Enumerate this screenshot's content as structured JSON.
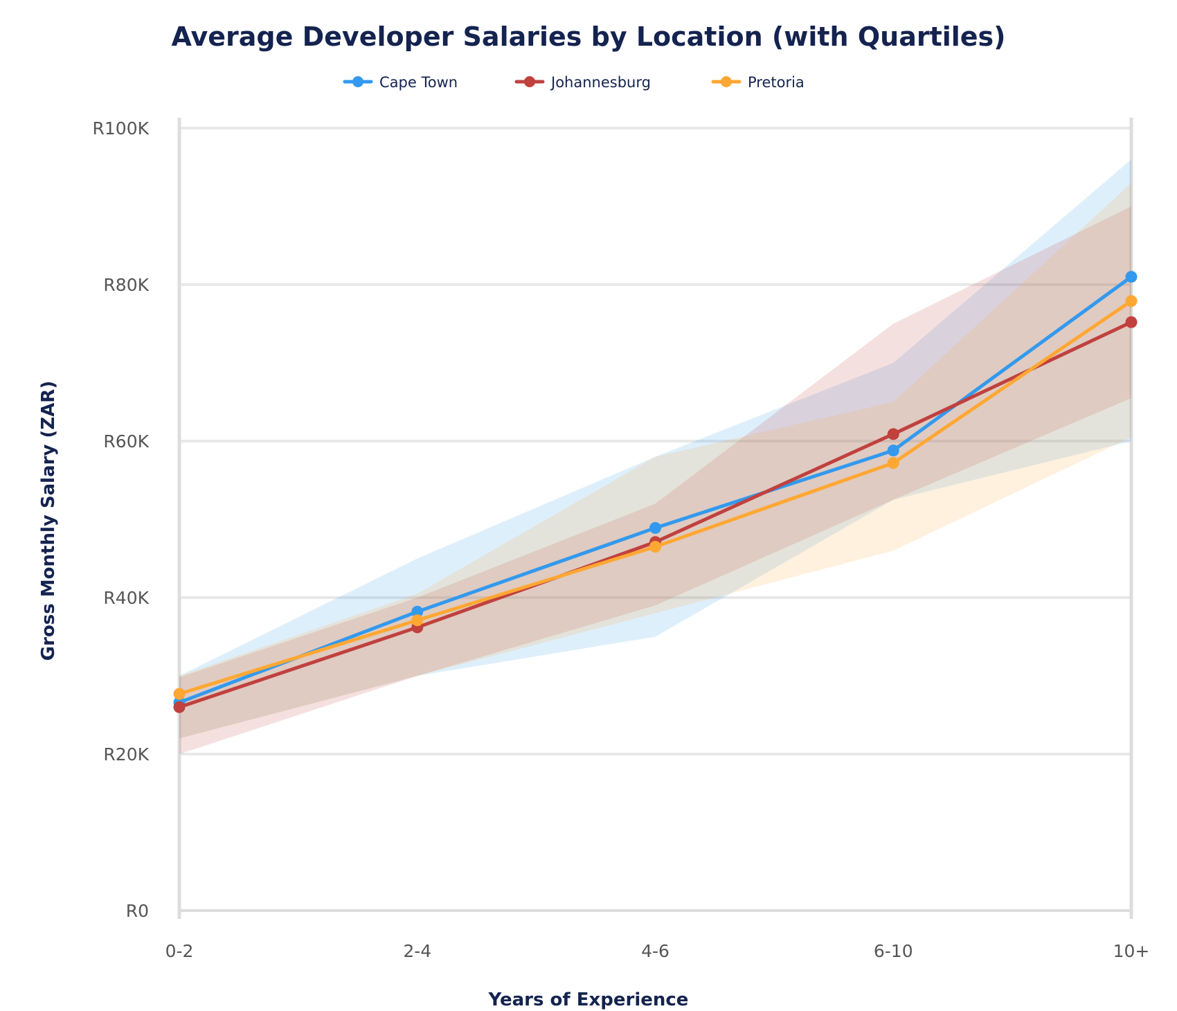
{
  "chart_data": {
    "type": "line",
    "title": "Average Developer Salaries by Location (with Quartiles)",
    "xlabel": "Years of Experience",
    "ylabel": "Gross Monthly Salary (ZAR)",
    "categories": [
      "0-2",
      "2-4",
      "4-6",
      "6-10",
      "10+"
    ],
    "ylim": [
      0,
      100000
    ],
    "yticks": [
      0,
      20000,
      40000,
      60000,
      80000,
      100000
    ],
    "ytick_labels": [
      "R0",
      "R20K",
      "R40K",
      "R60K",
      "R80K",
      "R100K"
    ],
    "grid": true,
    "legend_position": "top-center",
    "series": [
      {
        "name": "Cape Town",
        "color": "#3399ee",
        "values": [
          26600,
          38200,
          48900,
          58800,
          81000
        ],
        "q1": [
          22000,
          30000,
          35000,
          52500,
          60000
        ],
        "q3": [
          30000,
          45000,
          58000,
          70000,
          96000
        ]
      },
      {
        "name": "Johannesburg",
        "color": "#c0413e",
        "values": [
          26000,
          36200,
          47100,
          60900,
          75200
        ],
        "q1": [
          20000,
          30000,
          39000,
          52500,
          65500
        ],
        "q3": [
          29800,
          40000,
          52000,
          75000,
          90000
        ]
      },
      {
        "name": "Pretoria",
        "color": "#ffa733",
        "values": [
          27700,
          37100,
          46500,
          57200,
          77900
        ],
        "q1": [
          22000,
          30000,
          38000,
          46000,
          60500
        ],
        "q3": [
          30000,
          40500,
          58000,
          65000,
          93000
        ]
      }
    ]
  }
}
